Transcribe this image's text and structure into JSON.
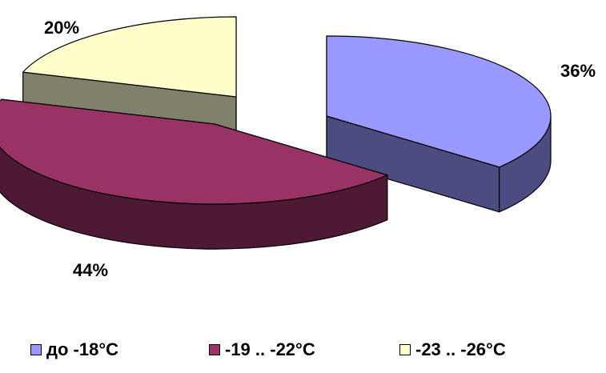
{
  "chart_data": {
    "type": "pie",
    "style": "3d-exploded",
    "title": "",
    "categories": [
      "до -18°C",
      "-19 .. -22°C",
      "-23 .. -26°C"
    ],
    "values": [
      36,
      44,
      20
    ],
    "value_labels": [
      "36%",
      "44%",
      "20%"
    ],
    "colors": [
      "#9999FF",
      "#993366",
      "#FFFFCC"
    ],
    "side_colors": [
      "#4C4C80",
      "#4D1933",
      "#80806B"
    ],
    "legend_position": "bottom"
  }
}
